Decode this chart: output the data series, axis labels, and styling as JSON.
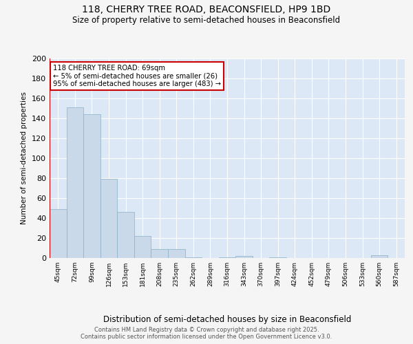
{
  "title_line1": "118, CHERRY TREE ROAD, BEACONSFIELD, HP9 1BD",
  "title_line2": "Size of property relative to semi-detached houses in Beaconsfield",
  "xlabel": "Distribution of semi-detached houses by size in Beaconsfield",
  "ylabel": "Number of semi-detached properties",
  "categories": [
    "45sqm",
    "72sqm",
    "99sqm",
    "126sqm",
    "153sqm",
    "181sqm",
    "208sqm",
    "235sqm",
    "262sqm",
    "289sqm",
    "316sqm",
    "343sqm",
    "370sqm",
    "397sqm",
    "424sqm",
    "452sqm",
    "479sqm",
    "506sqm",
    "533sqm",
    "560sqm",
    "587sqm"
  ],
  "values": [
    49,
    151,
    144,
    79,
    46,
    22,
    9,
    9,
    1,
    0,
    1,
    2,
    0,
    1,
    0,
    0,
    0,
    0,
    0,
    3,
    0
  ],
  "bar_color": "#c9d9ea",
  "bar_edge_color": "#8aaec8",
  "annotation_line1": "118 CHERRY TREE ROAD: 69sqm",
  "annotation_line2": "← 5% of semi-detached houses are smaller (26)",
  "annotation_line3": "95% of semi-detached houses are larger (483) →",
  "annotation_box_color": "#ffffff",
  "annotation_box_edge_color": "#cc0000",
  "property_line_color": "#cc0000",
  "ylim": [
    0,
    200
  ],
  "yticks": [
    0,
    20,
    40,
    60,
    80,
    100,
    120,
    140,
    160,
    180,
    200
  ],
  "bg_color": "#dce8f5",
  "grid_color": "#ffffff",
  "fig_bg_color": "#f5f5f5",
  "footer_line1": "Contains HM Land Registry data © Crown copyright and database right 2025.",
  "footer_line2": "Contains public sector information licensed under the Open Government Licence v3.0."
}
